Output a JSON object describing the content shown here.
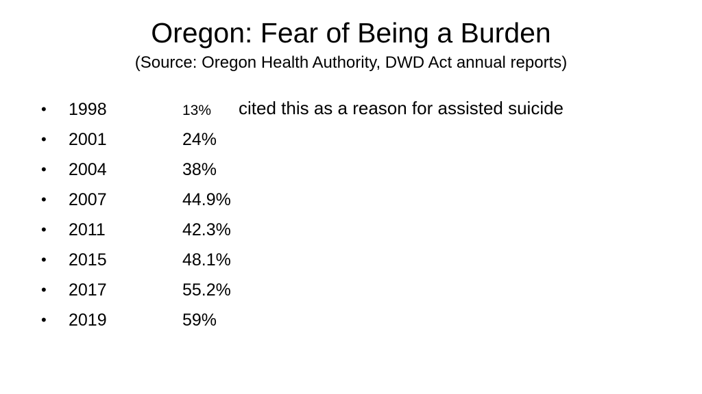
{
  "header": {
    "title": "Oregon: Fear of Being a Burden",
    "subtitle": "(Source: Oregon Health Authority, DWD Act annual reports)"
  },
  "list": {
    "items": [
      {
        "year": "1998",
        "percent": "13%",
        "note": "cited this as a reason for assisted suicide"
      },
      {
        "year": "2001",
        "percent": "24%"
      },
      {
        "year": "2004",
        "percent": "38%"
      },
      {
        "year": "2007",
        "percent": "44.9%"
      },
      {
        "year": "2011",
        "percent": "42.3%"
      },
      {
        "year": "2015",
        "percent": "48.1%"
      },
      {
        "year": "2017",
        "percent": "55.2%"
      },
      {
        "year": "2019",
        "percent": "59%"
      }
    ]
  }
}
